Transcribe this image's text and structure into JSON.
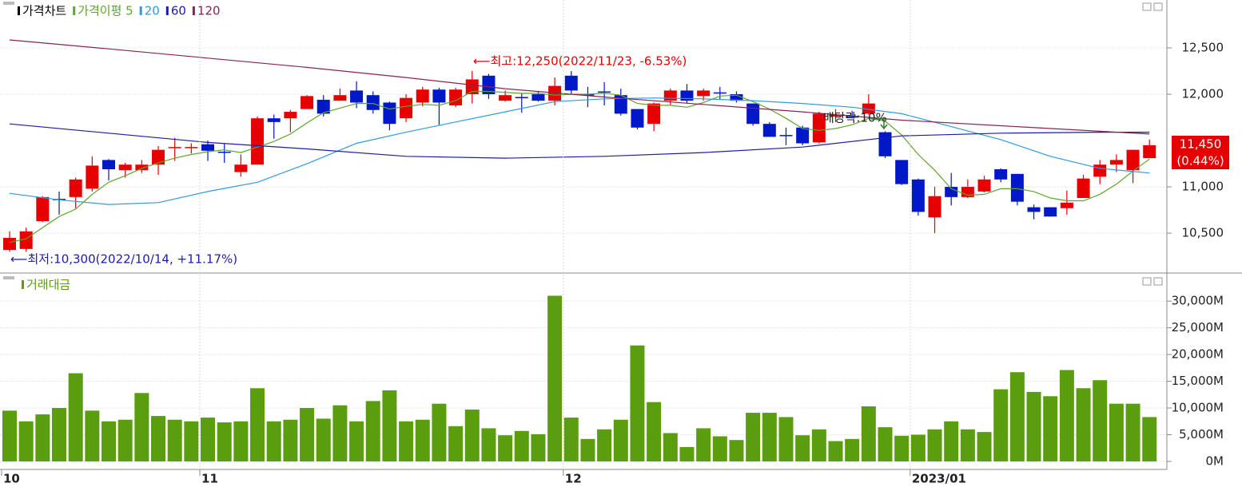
{
  "chart_data": [
    {
      "type": "candlestick",
      "name": "가격차트",
      "open": [
        10320,
        10330,
        10630,
        10870,
        10890,
        10980,
        11290,
        11180,
        11180,
        11240,
        11420,
        11420,
        11460,
        11380,
        11160,
        11240,
        11740,
        11740,
        11840,
        11940,
        11930,
        12040,
        11990,
        11910,
        11740,
        11910,
        12050,
        11880,
        12000,
        12200,
        11930,
        11970,
        12000,
        11930,
        12200,
        12000,
        12030,
        11990,
        11840,
        11680,
        11930,
        12040,
        11980,
        12020,
        12000,
        11900,
        11680,
        11560,
        11640,
        11480,
        11760,
        11760,
        11790,
        11590,
        11290,
        11080,
        10670,
        11000,
        10890,
        10950,
        11190,
        11140,
        10780,
        10780,
        10770,
        10880,
        11110,
        11240,
        11180,
        11310
      ],
      "high": [
        10520,
        10560,
        10900,
        10950,
        11100,
        11330,
        11300,
        11260,
        11290,
        11440,
        11530,
        11470,
        11500,
        11470,
        11350,
        11760,
        11780,
        11830,
        11990,
        11990,
        12060,
        12140,
        12030,
        11920,
        12000,
        12080,
        12070,
        12070,
        12250,
        12220,
        12040,
        12010,
        12030,
        12180,
        12250,
        12080,
        12130,
        12060,
        11840,
        11910,
        12060,
        12110,
        12060,
        12080,
        12030,
        11900,
        11700,
        11640,
        11660,
        11810,
        11840,
        11820,
        12000,
        11600,
        11290,
        11090,
        11000,
        11150,
        11080,
        11120,
        11200,
        11140,
        10810,
        10780,
        10960,
        11130,
        11290,
        11350,
        11400,
        11510
      ],
      "low": [
        10300,
        10300,
        10620,
        10700,
        10770,
        10950,
        11070,
        11100,
        11150,
        11130,
        11280,
        11360,
        11280,
        11260,
        11110,
        11240,
        11520,
        11590,
        11840,
        11760,
        11930,
        11850,
        11790,
        11610,
        11700,
        11870,
        11670,
        11860,
        11900,
        11950,
        11920,
        11800,
        11920,
        11880,
        12000,
        11860,
        11880,
        11770,
        11620,
        11600,
        11880,
        11900,
        11930,
        11940,
        11910,
        11660,
        11540,
        11450,
        11450,
        11470,
        11700,
        11740,
        11780,
        11310,
        11020,
        10690,
        10500,
        10800,
        10880,
        10940,
        11050,
        10800,
        10650,
        10680,
        10700,
        10880,
        11030,
        11160,
        11040,
        11310
      ],
      "close": [
        10450,
        10520,
        10890,
        10860,
        11080,
        11230,
        11190,
        11240,
        11240,
        11400,
        11430,
        11430,
        11390,
        11370,
        11240,
        11740,
        11700,
        11810,
        11980,
        11790,
        11990,
        11910,
        11830,
        11680,
        11960,
        12050,
        11910,
        12050,
        12160,
        12000,
        11990,
        11960,
        11930,
        12090,
        12040,
        11990,
        12020,
        11790,
        11640,
        11900,
        12040,
        11930,
        12040,
        12010,
        11930,
        11680,
        11540,
        11550,
        11470,
        11790,
        11780,
        11750,
        11900,
        11330,
        11030,
        10730,
        10900,
        10890,
        11000,
        11080,
        11080,
        10840,
        10730,
        10680,
        10830,
        11090,
        11240,
        11290,
        11400,
        11450
      ],
      "up_color": "#e60000",
      "down_color": "#0018c8",
      "series": [
        {
          "name": "가격이평 5",
          "color": "#5fa52b",
          "values": [
            10400,
            10440,
            10560,
            10680,
            10760,
            10920,
            11050,
            11120,
            11200,
            11260,
            11310,
            11350,
            11380,
            11400,
            11370,
            11430,
            11490,
            11570,
            11690,
            11800,
            11850,
            11900,
            11900,
            11840,
            11870,
            11890,
            11880,
            11930,
            12030,
            12030,
            12020,
            12010,
            12010,
            11990,
            12000,
            12000,
            12010,
            11990,
            11900,
            11880,
            11880,
            11860,
            11910,
            11980,
            11990,
            11920,
            11840,
            11740,
            11630,
            11610,
            11630,
            11670,
            11740,
            11710,
            11560,
            11350,
            11180,
            10980,
            10910,
            10920,
            10980,
            10980,
            10950,
            10880,
            10850,
            10850,
            10920,
            11030,
            11170,
            11300
          ]
        },
        {
          "name": "20",
          "color": "#2e9be0",
          "x": [
            0,
            3,
            6,
            9,
            12,
            15,
            18,
            21,
            24,
            27,
            30,
            33,
            36,
            39,
            42,
            45,
            48,
            51,
            54,
            57,
            60,
            63,
            66,
            69
          ],
          "values": [
            10930,
            10860,
            10810,
            10830,
            10950,
            11050,
            11250,
            11470,
            11590,
            11700,
            11810,
            11920,
            11950,
            11960,
            11950,
            11930,
            11900,
            11860,
            11790,
            11650,
            11510,
            11330,
            11200,
            11150
          ]
        },
        {
          "name": "60",
          "color": "#1c1ca8",
          "x": [
            0,
            6,
            12,
            18,
            24,
            30,
            36,
            42,
            48,
            54,
            60,
            66,
            69
          ],
          "values": [
            11680,
            11580,
            11480,
            11410,
            11330,
            11310,
            11330,
            11370,
            11430,
            11550,
            11580,
            11590,
            11590
          ]
        },
        {
          "name": "120",
          "color": "#8b2252",
          "x": [
            0,
            6,
            12,
            18,
            24,
            30,
            36,
            42,
            48,
            54,
            60,
            66,
            69
          ],
          "values": [
            12586,
            12490,
            12390,
            12290,
            12180,
            12060,
            11970,
            11890,
            11810,
            11720,
            11660,
            11600,
            11570
          ]
        }
      ],
      "ylim": [
        10070,
        13017
      ],
      "yticks": [
        {
          "value": 10500,
          "label": "10,500"
        },
        {
          "value": 11000,
          "label": "11,000"
        },
        {
          "value": 12000,
          "label": "12,000"
        },
        {
          "value": 12500,
          "label": "12,500"
        }
      ],
      "annotations": {
        "high": "⟵최고:12,250(2022/11/23, -6.53%)",
        "low": "⟵최저:10,300(2022/10/14, +11.17%)",
        "dividend": "배당락:10%",
        "current_price": "11,450",
        "current_change": "(0.44%)"
      },
      "grid": true
    },
    {
      "type": "bar",
      "name": "거래대금",
      "color": "#5a9e0f",
      "categories": [
        "10",
        null,
        null,
        null,
        null,
        null,
        null,
        null,
        null,
        null,
        null,
        null,
        "11",
        null,
        null,
        null,
        null,
        null,
        null,
        null,
        null,
        null,
        null,
        null,
        null,
        null,
        null,
        null,
        null,
        null,
        null,
        null,
        null,
        null,
        "12",
        null,
        null,
        null,
        null,
        null,
        null,
        null,
        null,
        null,
        null,
        null,
        null,
        null,
        null,
        null,
        null,
        null,
        null,
        null,
        null,
        "2023/01",
        null,
        null,
        null,
        null,
        null,
        null,
        null,
        null,
        null,
        null,
        null,
        null,
        null,
        null
      ],
      "values": [
        9500,
        7500,
        8800,
        10000,
        16500,
        9500,
        7500,
        7800,
        12800,
        8500,
        7800,
        7500,
        8200,
        7300,
        7500,
        13700,
        7500,
        7800,
        10000,
        8000,
        10500,
        7500,
        11300,
        13300,
        7500,
        7800,
        10800,
        6600,
        9700,
        6200,
        4900,
        5700,
        5100,
        31000,
        8200,
        4200,
        6000,
        7800,
        21700,
        11100,
        5300,
        2700,
        6200,
        4700,
        4000,
        9100,
        9100,
        8300,
        4900,
        6000,
        3800,
        4200,
        10300,
        6400,
        4800,
        5000,
        6000,
        7500,
        6000,
        5500,
        13500,
        16700,
        13000,
        12200,
        17100,
        13700,
        15200,
        10800,
        10800,
        8300
      ],
      "ylim": [
        -1500,
        34800
      ],
      "yticks": [
        {
          "value": 0,
          "label": "0M"
        },
        {
          "value": 5000,
          "label": "5,000M"
        },
        {
          "value": 10000,
          "label": "10,000M"
        },
        {
          "value": 15000,
          "label": "15,000M"
        },
        {
          "value": 20000,
          "label": "20,000M"
        },
        {
          "value": 25000,
          "label": "25,000M"
        },
        {
          "value": 30000,
          "label": "30,000M"
        }
      ],
      "grid": true
    }
  ]
}
